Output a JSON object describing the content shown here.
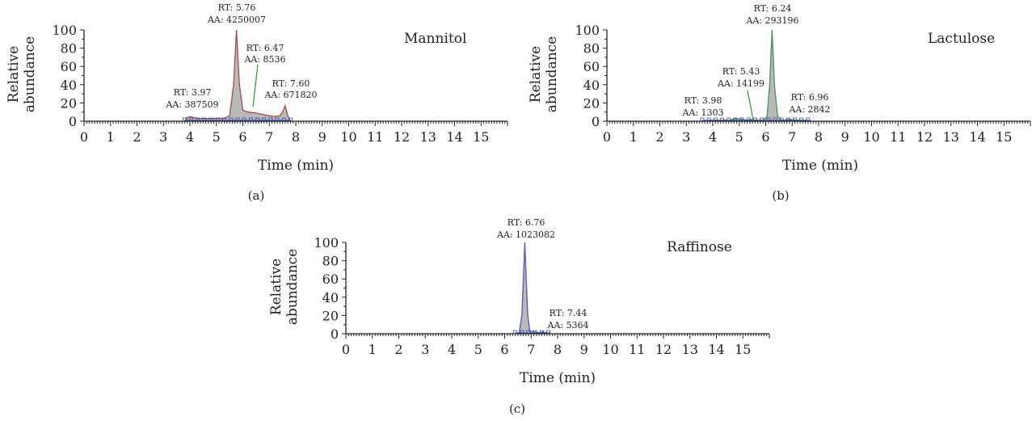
{
  "chart_data": [
    {
      "type": "area",
      "panel": "(a)",
      "title": "Mannitol",
      "xlabel": "Time (min)",
      "ylabel": "Relative abundance",
      "xlim": [
        0,
        16
      ],
      "ylim": [
        0,
        100
      ],
      "x_ticks": [
        "0",
        "1",
        "2",
        "3",
        "4",
        "5",
        "6",
        "7",
        "8",
        "9",
        "10",
        "11",
        "12",
        "13",
        "14",
        "15"
      ],
      "y_ticks": [
        "0",
        "20",
        "40",
        "60",
        "80",
        "100"
      ],
      "colors": {
        "trace": "#a5574c",
        "fill": "#b9b9b9",
        "baseline": "#3a4fb0",
        "annotation_line": "#2e9a2e"
      },
      "series": [
        {
          "x": [
            3.8,
            3.9,
            4.0,
            4.3,
            4.6,
            5.0,
            5.3,
            5.5,
            5.65,
            5.76,
            5.87,
            6.0,
            6.2,
            6.5,
            6.8,
            7.0,
            7.2,
            7.4,
            7.5,
            7.6,
            7.7,
            7.8
          ],
          "y": [
            0,
            4,
            5,
            3,
            3,
            3,
            3,
            6,
            40,
            100,
            40,
            12,
            10,
            9,
            7,
            6,
            5,
            6,
            10,
            17,
            6,
            0
          ]
        }
      ],
      "annotations": [
        {
          "rt": "RT: 3.97",
          "aa": "AA: 387509"
        },
        {
          "rt": "RT: 5.76",
          "aa": "AA: 4250007"
        },
        {
          "rt": "RT: 6.47",
          "aa": "AA: 8536"
        },
        {
          "rt": "RT: 7.60",
          "aa": "AA: 671820"
        }
      ]
    },
    {
      "type": "area",
      "panel": "(b)",
      "title": "Lactulose",
      "xlabel": "Time (min)",
      "ylabel": "Relative abundance",
      "xlim": [
        0,
        16
      ],
      "ylim": [
        0,
        100
      ],
      "x_ticks": [
        "0",
        "1",
        "2",
        "3",
        "4",
        "5",
        "6",
        "7",
        "8",
        "9",
        "10",
        "11",
        "12",
        "13",
        "14",
        "15"
      ],
      "y_ticks": [
        "0",
        "20",
        "40",
        "60",
        "80",
        "100"
      ],
      "colors": {
        "trace": "#4d9a58",
        "fill": "#b9b9b9",
        "baseline": "#3a4fb0",
        "annotation_line": "#2e9a2e"
      },
      "series": [
        {
          "x": [
            3.6,
            3.9,
            4.2,
            4.6,
            4.9,
            5.1,
            5.3,
            5.43,
            5.6,
            5.9,
            6.05,
            6.15,
            6.24,
            6.33,
            6.45,
            6.6,
            6.9,
            7.2,
            7.5,
            7.7
          ],
          "y": [
            0,
            1,
            1,
            1,
            3,
            2,
            1,
            2,
            1,
            1,
            5,
            40,
            100,
            40,
            5,
            1,
            2,
            1,
            1,
            0
          ]
        }
      ],
      "annotations": [
        {
          "rt": "RT: 3.98",
          "aa": "AA: 1303"
        },
        {
          "rt": "RT: 5.43",
          "aa": "AA: 14199"
        },
        {
          "rt": "RT: 6.24",
          "aa": "AA: 293196"
        },
        {
          "rt": "RT: 6.96",
          "aa": "AA: 2842"
        }
      ]
    },
    {
      "type": "area",
      "panel": "(c)",
      "title": "Raffinose",
      "xlabel": "Time (min)",
      "ylabel": "Relative abundance",
      "xlim": [
        0,
        16
      ],
      "ylim": [
        0,
        100
      ],
      "x_ticks": [
        "0",
        "1",
        "2",
        "3",
        "4",
        "5",
        "6",
        "7",
        "8",
        "9",
        "10",
        "11",
        "12",
        "13",
        "14",
        "15"
      ],
      "y_ticks": [
        "0",
        "20",
        "40",
        "60",
        "80",
        "100"
      ],
      "colors": {
        "trace": "#5a5fb2",
        "fill": "#b9b9b9",
        "baseline": "#3a4fb0",
        "annotation_line": "#2e9a2e"
      },
      "series": [
        {
          "x": [
            6.4,
            6.55,
            6.65,
            6.72,
            6.76,
            6.8,
            6.87,
            6.95,
            7.1,
            7.3,
            7.44,
            7.6,
            7.7
          ],
          "y": [
            0,
            1,
            20,
            70,
            100,
            70,
            20,
            3,
            2,
            1,
            2,
            1,
            0
          ]
        }
      ],
      "annotations": [
        {
          "rt": "RT: 6.76",
          "aa": "AA: 1023082"
        },
        {
          "rt": "RT: 7.44",
          "aa": "AA: 5364"
        }
      ]
    }
  ]
}
